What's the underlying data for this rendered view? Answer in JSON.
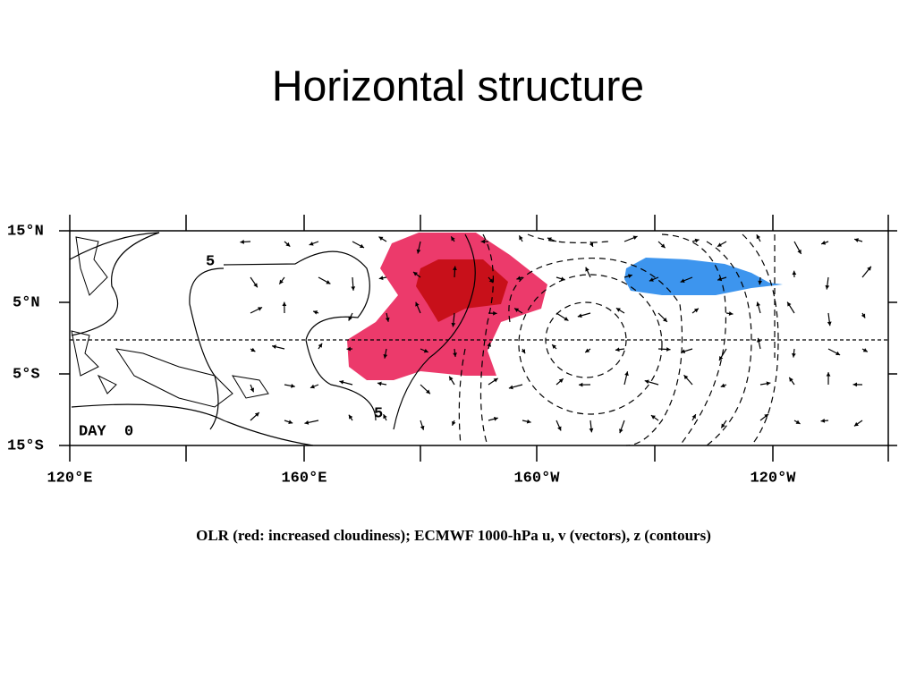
{
  "title": "Horizontal structure",
  "map": {
    "lat_labels": [
      "15°N",
      "5°N",
      "5°S",
      "15°S"
    ],
    "lon_labels": [
      "120°E",
      "160°E",
      "160°W",
      "120°W"
    ],
    "contour_labels": [
      "5",
      "5"
    ],
    "panel_label": "DAY  0"
  },
  "caption": "OLR (red: increased cloudiness); ECMWF 1000-hPa u, v (vectors), z (contours)"
}
